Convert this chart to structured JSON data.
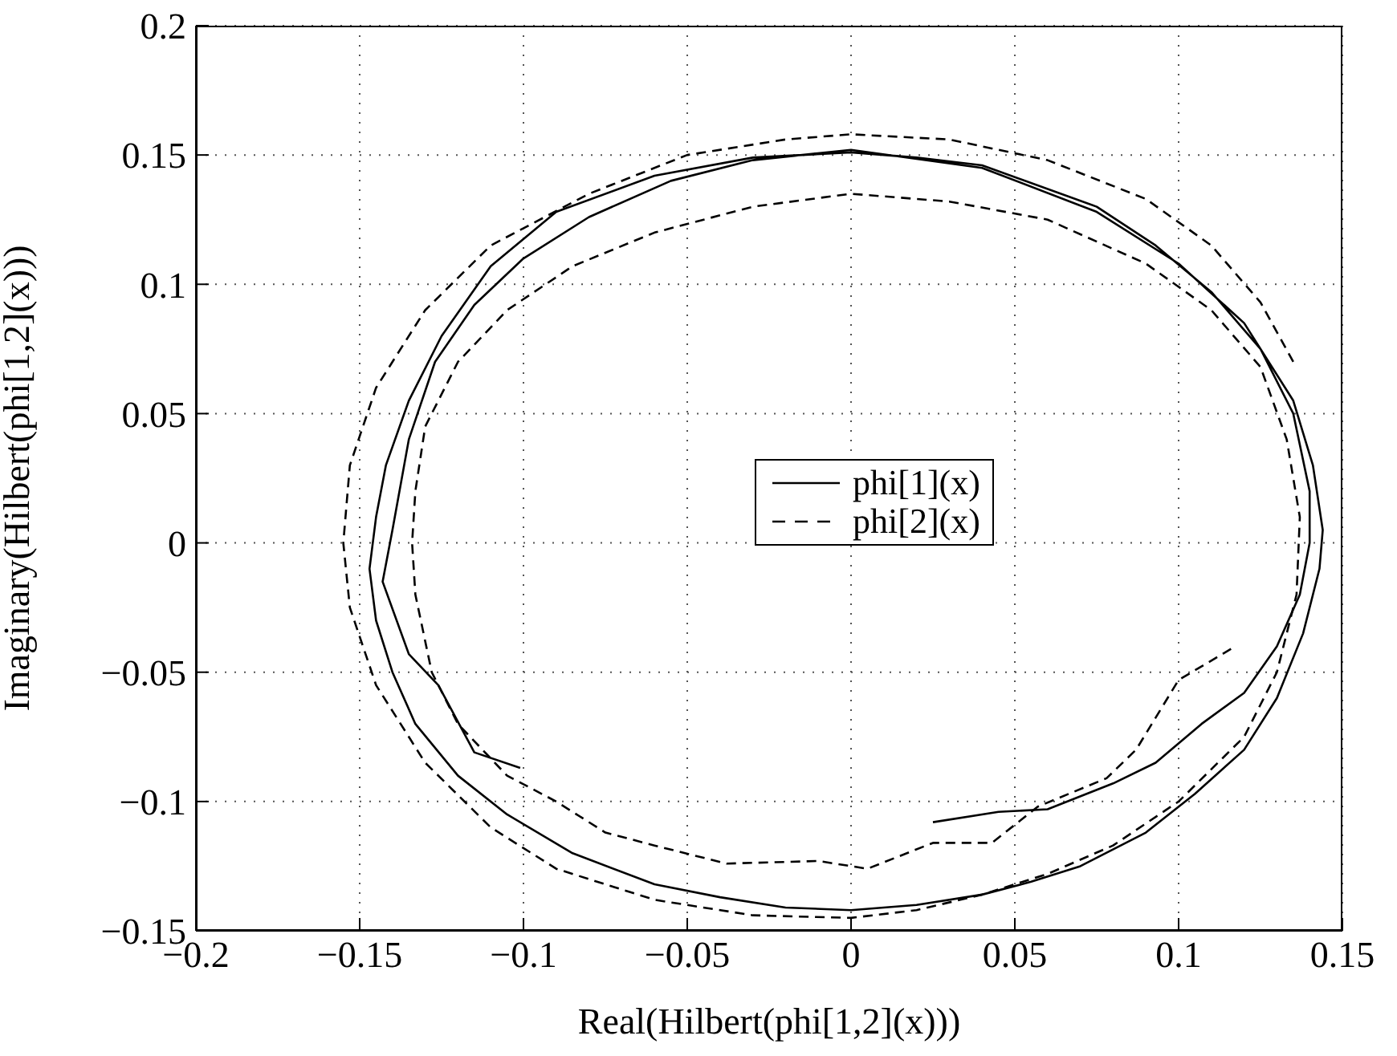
{
  "chart_data": {
    "type": "line",
    "xlabel": "Real(Hilbert(phi[1,2](x)))",
    "ylabel": "Imaginary(Hilbert(phi[1,2](x)))",
    "xlim": [
      -0.2,
      0.15
    ],
    "xticks": [
      -0.2,
      -0.15,
      -0.1,
      -0.05,
      0,
      0.05,
      0.1,
      0.15
    ],
    "ylim": [
      -0.15,
      0.2
    ],
    "yticks": [
      -0.15,
      -0.1,
      -0.05,
      0,
      0.05,
      0.1,
      0.15,
      0.2
    ],
    "grid": true,
    "legend": "center",
    "marker": "none",
    "series": [
      {
        "name": "phi[1](x)",
        "color": "#000000",
        "line_style": "solid",
        "x": [
          0.025,
          0.045,
          0.06,
          0.08,
          0.093,
          0.107,
          0.12,
          0.13,
          0.137,
          0.14,
          0.14,
          0.135,
          0.125,
          0.11,
          0.093,
          0.075,
          0.04,
          0.02,
          0,
          -0.03,
          -0.06,
          -0.09,
          -0.11,
          -0.125,
          -0.135,
          -0.142,
          -0.145,
          -0.147,
          -0.145,
          -0.14,
          -0.133,
          -0.12,
          -0.105,
          -0.085,
          -0.06,
          -0.04,
          -0.02,
          0,
          0.02,
          0.04,
          0.055,
          0.07,
          0.09,
          0.105,
          0.12,
          0.13,
          0.138,
          0.143,
          0.144,
          0.141,
          0.135,
          0.12,
          0.1,
          0.075,
          0.04,
          0,
          -0.03,
          -0.055,
          -0.08,
          -0.1,
          -0.115,
          -0.127,
          -0.135,
          -0.14,
          -0.143,
          -0.135,
          -0.126,
          -0.115,
          -0.101
        ],
        "values": [
          -0.108,
          -0.104,
          -0.103,
          -0.093,
          -0.085,
          -0.07,
          -0.058,
          -0.04,
          -0.02,
          0,
          0.02,
          0.05,
          0.075,
          0.097,
          0.115,
          0.13,
          0.146,
          0.149,
          0.151,
          0.149,
          0.142,
          0.128,
          0.107,
          0.08,
          0.055,
          0.03,
          0.01,
          -0.01,
          -0.03,
          -0.05,
          -0.07,
          -0.09,
          -0.105,
          -0.12,
          -0.132,
          -0.137,
          -0.141,
          -0.142,
          -0.14,
          -0.136,
          -0.131,
          -0.125,
          -0.112,
          -0.097,
          -0.08,
          -0.06,
          -0.035,
          -0.01,
          0.005,
          0.03,
          0.055,
          0.085,
          0.108,
          0.128,
          0.145,
          0.152,
          0.148,
          0.14,
          0.126,
          0.11,
          0.092,
          0.07,
          0.04,
          0.005,
          -0.015,
          -0.043,
          -0.055,
          -0.081,
          -0.087
        ]
      },
      {
        "name": "phi[2](x)",
        "color": "#000000",
        "line_style": "dashed",
        "x": [
          0.116,
          0.1,
          0.087,
          0.078,
          0.057,
          0.043,
          0.025,
          0.005,
          -0.01,
          -0.038,
          -0.06,
          -0.075,
          -0.09,
          -0.105,
          -0.12,
          -0.128,
          -0.133,
          -0.134,
          -0.133,
          -0.13,
          -0.12,
          -0.105,
          -0.085,
          -0.06,
          -0.03,
          0,
          0.03,
          0.06,
          0.09,
          0.11,
          0.125,
          0.133,
          0.137,
          0.136,
          0.13,
          0.12,
          0.1,
          0.08,
          0.06,
          0.04,
          0.02,
          0,
          -0.03,
          -0.06,
          -0.09,
          -0.11,
          -0.13,
          -0.145,
          -0.153,
          -0.155,
          -0.153,
          -0.145,
          -0.13,
          -0.11,
          -0.08,
          -0.05,
          -0.02,
          0,
          0.03,
          0.06,
          0.09,
          0.11,
          0.125,
          0.135
        ],
        "values": [
          -0.041,
          -0.053,
          -0.08,
          -0.091,
          -0.102,
          -0.116,
          -0.116,
          -0.126,
          -0.123,
          -0.124,
          -0.117,
          -0.112,
          -0.1,
          -0.09,
          -0.07,
          -0.05,
          -0.02,
          0,
          0.02,
          0.045,
          0.07,
          0.09,
          0.107,
          0.12,
          0.13,
          0.135,
          0.132,
          0.125,
          0.108,
          0.09,
          0.068,
          0.04,
          0.01,
          -0.02,
          -0.05,
          -0.075,
          -0.1,
          -0.117,
          -0.128,
          -0.136,
          -0.142,
          -0.145,
          -0.144,
          -0.138,
          -0.126,
          -0.11,
          -0.085,
          -0.055,
          -0.025,
          0,
          0.03,
          0.06,
          0.09,
          0.115,
          0.135,
          0.15,
          0.156,
          0.158,
          0.156,
          0.148,
          0.133,
          0.115,
          0.093,
          0.07
        ]
      }
    ]
  }
}
